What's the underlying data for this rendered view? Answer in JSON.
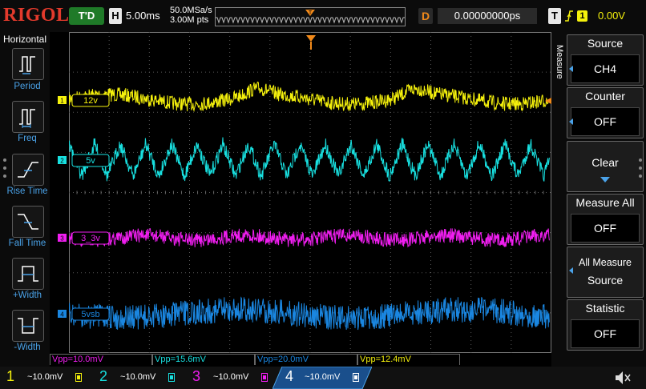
{
  "brand": "RIGOL",
  "top_bar": {
    "trigger_status": "T'D",
    "horizontal_badge": "H",
    "timebase": "5.00ms",
    "sample_rate": "50.0MSa/s",
    "memory_depth": "3.00M pts",
    "delay_badge": "D",
    "delay": "0.00000000ps",
    "trigger_badge": "T",
    "trigger_source": "1",
    "trigger_level": "0.00V"
  },
  "left_menu": {
    "title": "Horizontal",
    "items": [
      {
        "label": "Period",
        "icon": "period-icon"
      },
      {
        "label": "Freq",
        "icon": "frequency-icon"
      },
      {
        "label": "Rise Time",
        "icon": "rise-time-icon"
      },
      {
        "label": "Fall Time",
        "icon": "fall-time-icon"
      },
      {
        "label": "+Width",
        "icon": "positive-width-icon"
      },
      {
        "label": "-Width",
        "icon": "negative-width-icon"
      }
    ]
  },
  "channels": [
    {
      "num": "1",
      "label": "12v",
      "color": "#f5f10c",
      "scale": "10.0mV"
    },
    {
      "num": "2",
      "label": "5v",
      "color": "#18e0e0",
      "scale": "10.0mV"
    },
    {
      "num": "3",
      "label": "3_3v",
      "color": "#f01ef0",
      "scale": "10.0mV"
    },
    {
      "num": "4",
      "label": "5vsb",
      "color": "#1a86e0",
      "scale": "10.0mV"
    }
  ],
  "right_menu": {
    "title": "Measure",
    "items": [
      {
        "title": "Source",
        "value": "CH4"
      },
      {
        "title": "Counter",
        "value": "OFF"
      },
      {
        "title": "Clear",
        "value": ""
      },
      {
        "title": "Measure All",
        "value": "OFF"
      },
      {
        "title": "All Measure",
        "title2": "Source",
        "value": ""
      },
      {
        "title": "Statistic",
        "value": "OFF"
      }
    ]
  },
  "measurements": [
    {
      "text": "Vpp=10.0mV",
      "color": "#f01ef0"
    },
    {
      "text": "Vpp=15.6mV",
      "color": "#18e0e0"
    },
    {
      "text": "Vpp=20.0mV",
      "color": "#1a86e0"
    },
    {
      "text": "Vpp=12.4mV",
      "color": "#f5f10c"
    }
  ]
}
